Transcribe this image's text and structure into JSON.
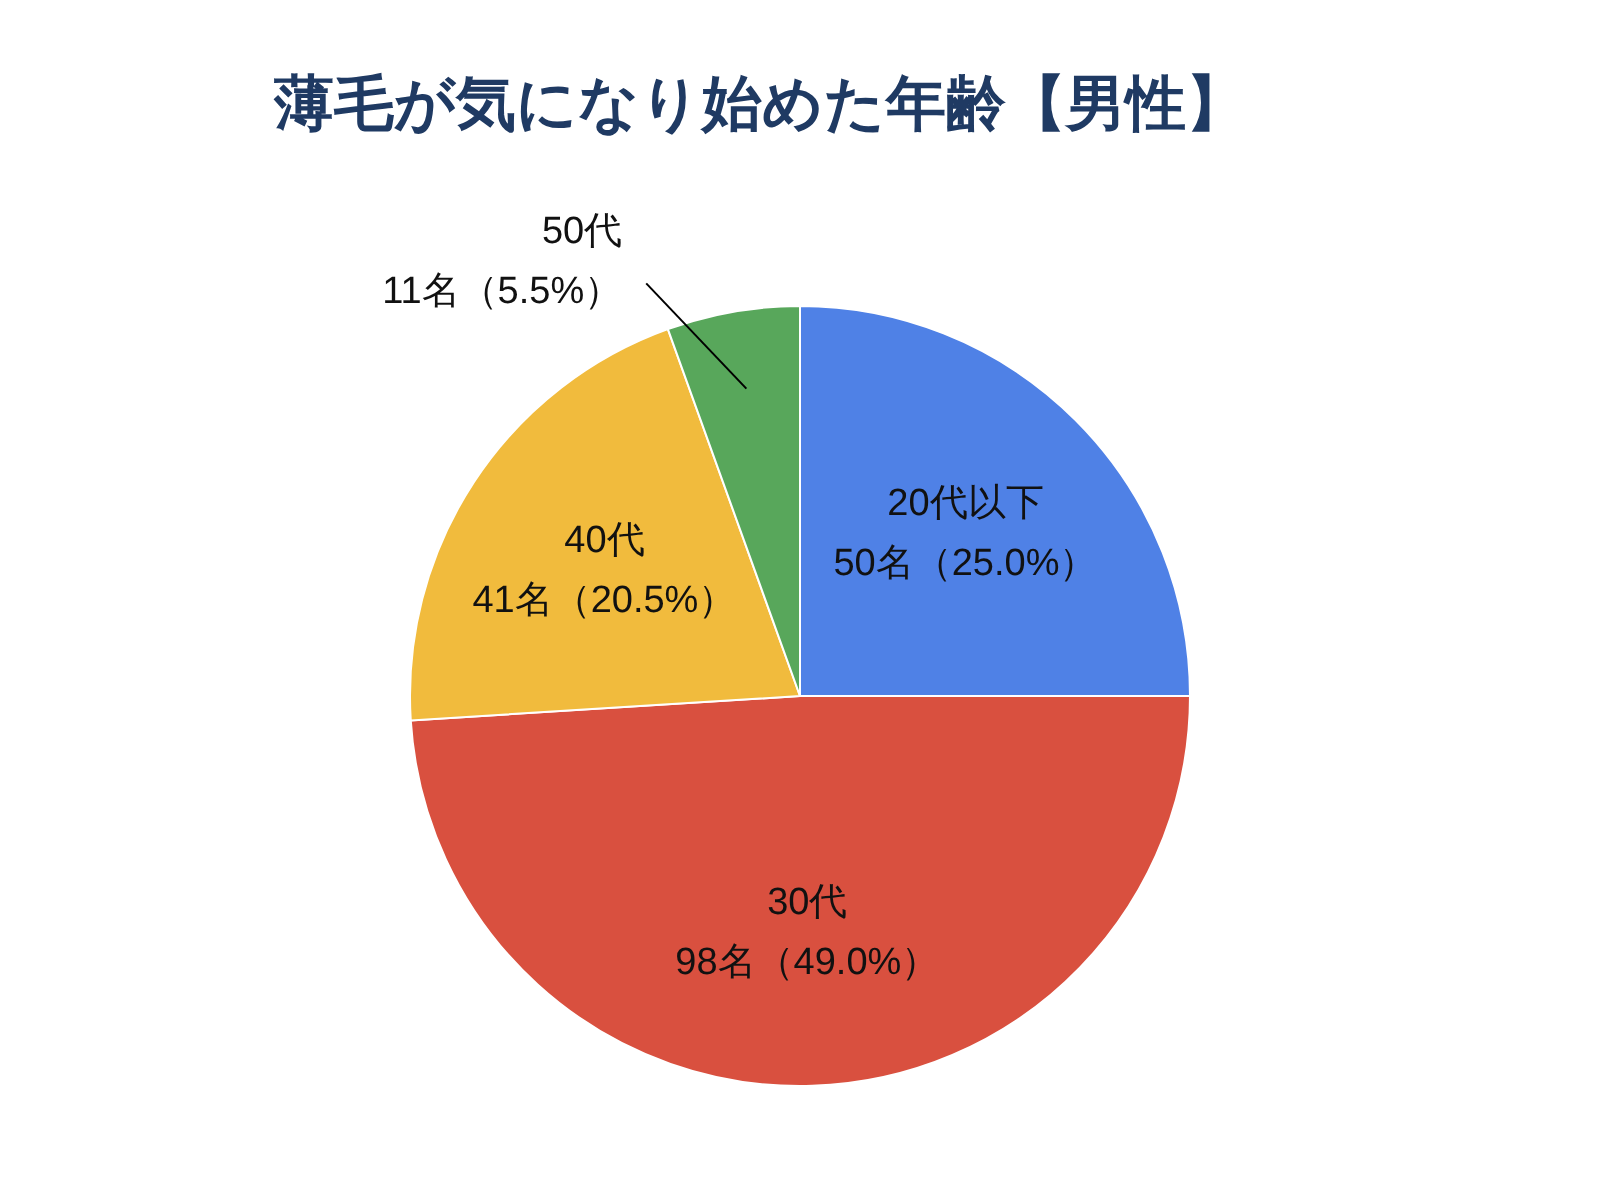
{
  "chart_data": {
    "type": "pie",
    "title": "薄毛が気になり始めた年齢【男性】",
    "categories": [
      "20代以下",
      "30代",
      "40代",
      "50代"
    ],
    "values": [
      50,
      98,
      41,
      11
    ],
    "value_labels": [
      "50名（25.0%）",
      "98名（49.0%）",
      "41名（20.5%）",
      "11名（5.5%）"
    ],
    "colors": [
      "#4f81e6",
      "#d9503f",
      "#f1bb3d",
      "#58a75b"
    ],
    "legend": false
  }
}
